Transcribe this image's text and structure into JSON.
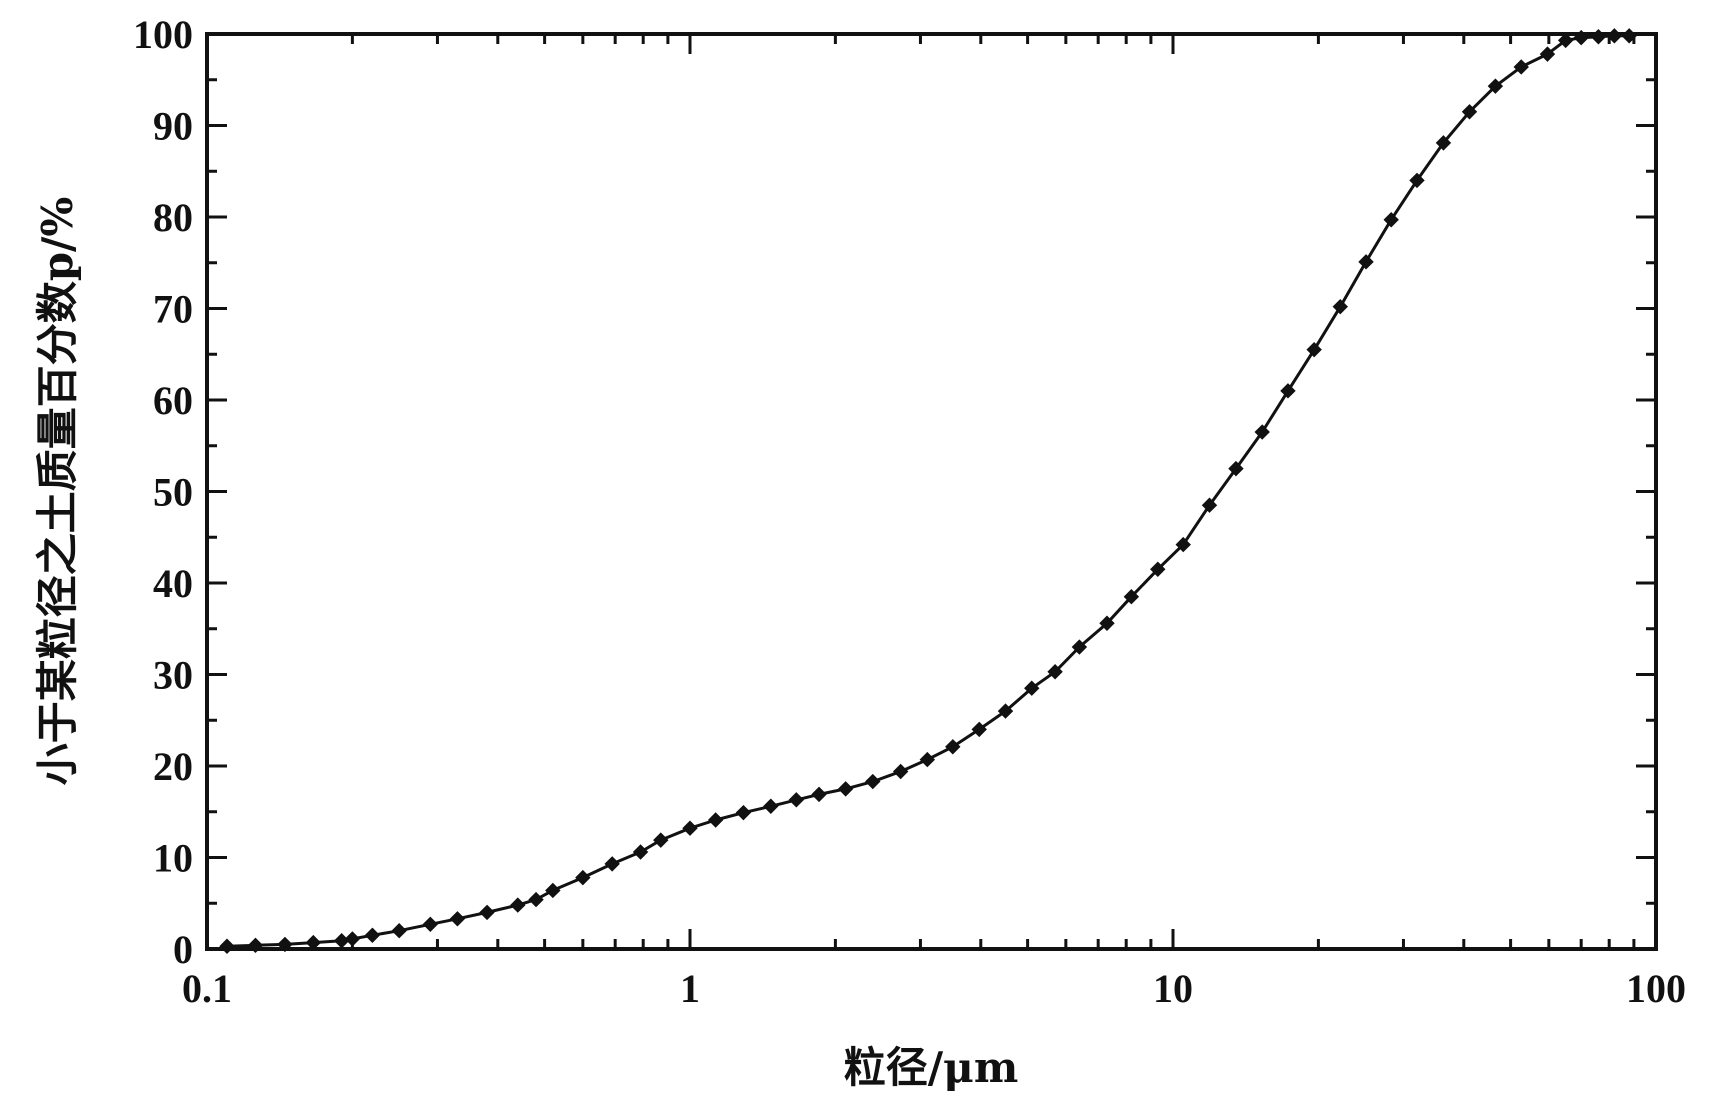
{
  "chart_data": {
    "type": "line",
    "title": "",
    "xlabel": "粒径/μm",
    "ylabel": "小于某粒径之土质量百分数p/%",
    "x_scale": "log",
    "xlim": [
      0.1,
      100
    ],
    "ylim": [
      0,
      100
    ],
    "x_ticks": [
      0.1,
      1,
      10,
      100
    ],
    "x_tick_labels": [
      "0.1",
      "1",
      "10",
      "100"
    ],
    "y_ticks": [
      0,
      10,
      20,
      30,
      40,
      50,
      60,
      70,
      80,
      90,
      100
    ],
    "y_tick_labels": [
      "0",
      "10",
      "20",
      "30",
      "40",
      "50",
      "60",
      "70",
      "80",
      "90",
      "100"
    ],
    "grid": false,
    "marker": "diamond",
    "series": [
      {
        "x": [
          0.11,
          0.126,
          0.145,
          0.166,
          0.19,
          0.2,
          0.22,
          0.25,
          0.29,
          0.33,
          0.38,
          0.44,
          0.48,
          0.52,
          0.6,
          0.69,
          0.79,
          0.87,
          1.0,
          1.13,
          1.29,
          1.47,
          1.66,
          1.85,
          2.1,
          2.39,
          2.73,
          3.1,
          3.5,
          3.97,
          4.5,
          5.1,
          5.7,
          6.4,
          7.3,
          8.2,
          9.3,
          10.5,
          11.9,
          13.5,
          15.3,
          17.3,
          19.6,
          22.2,
          25.1,
          28.3,
          32.0,
          36.3,
          41.1,
          46.5,
          52.6,
          59.6,
          65.0,
          70.0,
          76.0,
          82.0,
          88.0
        ],
        "y": [
          0.3,
          0.4,
          0.5,
          0.7,
          0.9,
          1.1,
          1.5,
          2.0,
          2.7,
          3.3,
          4.0,
          4.8,
          5.4,
          6.4,
          7.8,
          9.3,
          10.6,
          11.9,
          13.2,
          14.1,
          14.9,
          15.6,
          16.3,
          16.9,
          17.5,
          18.3,
          19.4,
          20.7,
          22.1,
          24.0,
          26.0,
          28.5,
          30.3,
          33.0,
          35.6,
          38.5,
          41.5,
          44.2,
          48.5,
          52.5,
          56.5,
          61.0,
          65.5,
          70.2,
          75.1,
          79.7,
          84.0,
          88.1,
          91.5,
          94.3,
          96.4,
          97.8,
          99.3,
          99.6,
          99.7,
          99.8,
          99.8
        ]
      }
    ]
  }
}
